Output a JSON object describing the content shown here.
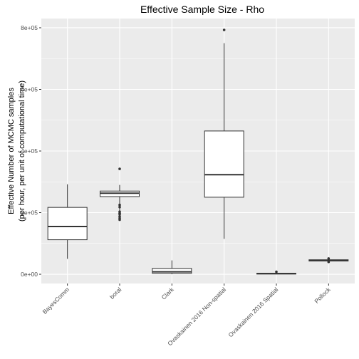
{
  "chart_data": {
    "type": "box",
    "title": "Effective Sample Size - Rho",
    "ylabel_lines": [
      "Effective Number of MCMC samples",
      "(per hour, per unit of computational time)"
    ],
    "xlabel": "",
    "ylim": [
      -30000,
      830000
    ],
    "yticks": [
      0,
      200000,
      400000,
      600000,
      800000
    ],
    "ytick_labels": [
      "0e+00",
      "2e+05",
      "4e+05",
      "6e+05",
      "8e+05"
    ],
    "grid": true,
    "panel_background": "#ebebeb",
    "grid_color": "#ffffff",
    "box_fill": "#ffffff",
    "box_stroke": "#333333",
    "categories": [
      "BayesComm",
      "boral",
      "Clark",
      "Ovaskainen 2016 Non-spatial",
      "Ovaskainen 2016 Spatial",
      "Pollock"
    ],
    "boxes": [
      {
        "category": "BayesComm",
        "whisker_low": 50000,
        "q1": 112000,
        "median": 155000,
        "q3": 217000,
        "whisker_high": 292000,
        "outliers": []
      },
      {
        "category": "boral",
        "whisker_low": 178000,
        "q1": 252000,
        "median": 263000,
        "q3": 270000,
        "whisker_high": 290000,
        "outliers": [
          342000,
          225000,
          218000,
          203000,
          198000,
          195000,
          188000,
          182000,
          177000
        ]
      },
      {
        "category": "Clark",
        "whisker_low": 0,
        "q1": 3000,
        "median": 8000,
        "q3": 19000,
        "whisker_high": 45000,
        "outliers": []
      },
      {
        "category": "Ovaskainen 2016 Non-spatial",
        "whisker_low": 115000,
        "q1": 250000,
        "median": 323000,
        "q3": 465000,
        "whisker_high": 750000,
        "outliers": [
          793000
        ]
      },
      {
        "category": "Ovaskainen 2016 Spatial",
        "whisker_low": 0,
        "q1": 1000,
        "median": 2000,
        "q3": 3000,
        "whisker_high": 5000,
        "outliers": [
          8000
        ]
      },
      {
        "category": "Pollock",
        "whisker_low": 42000,
        "q1": 43000,
        "median": 45000,
        "q3": 47000,
        "whisker_high": 49000,
        "outliers": [
          51000,
          40000
        ]
      }
    ]
  }
}
